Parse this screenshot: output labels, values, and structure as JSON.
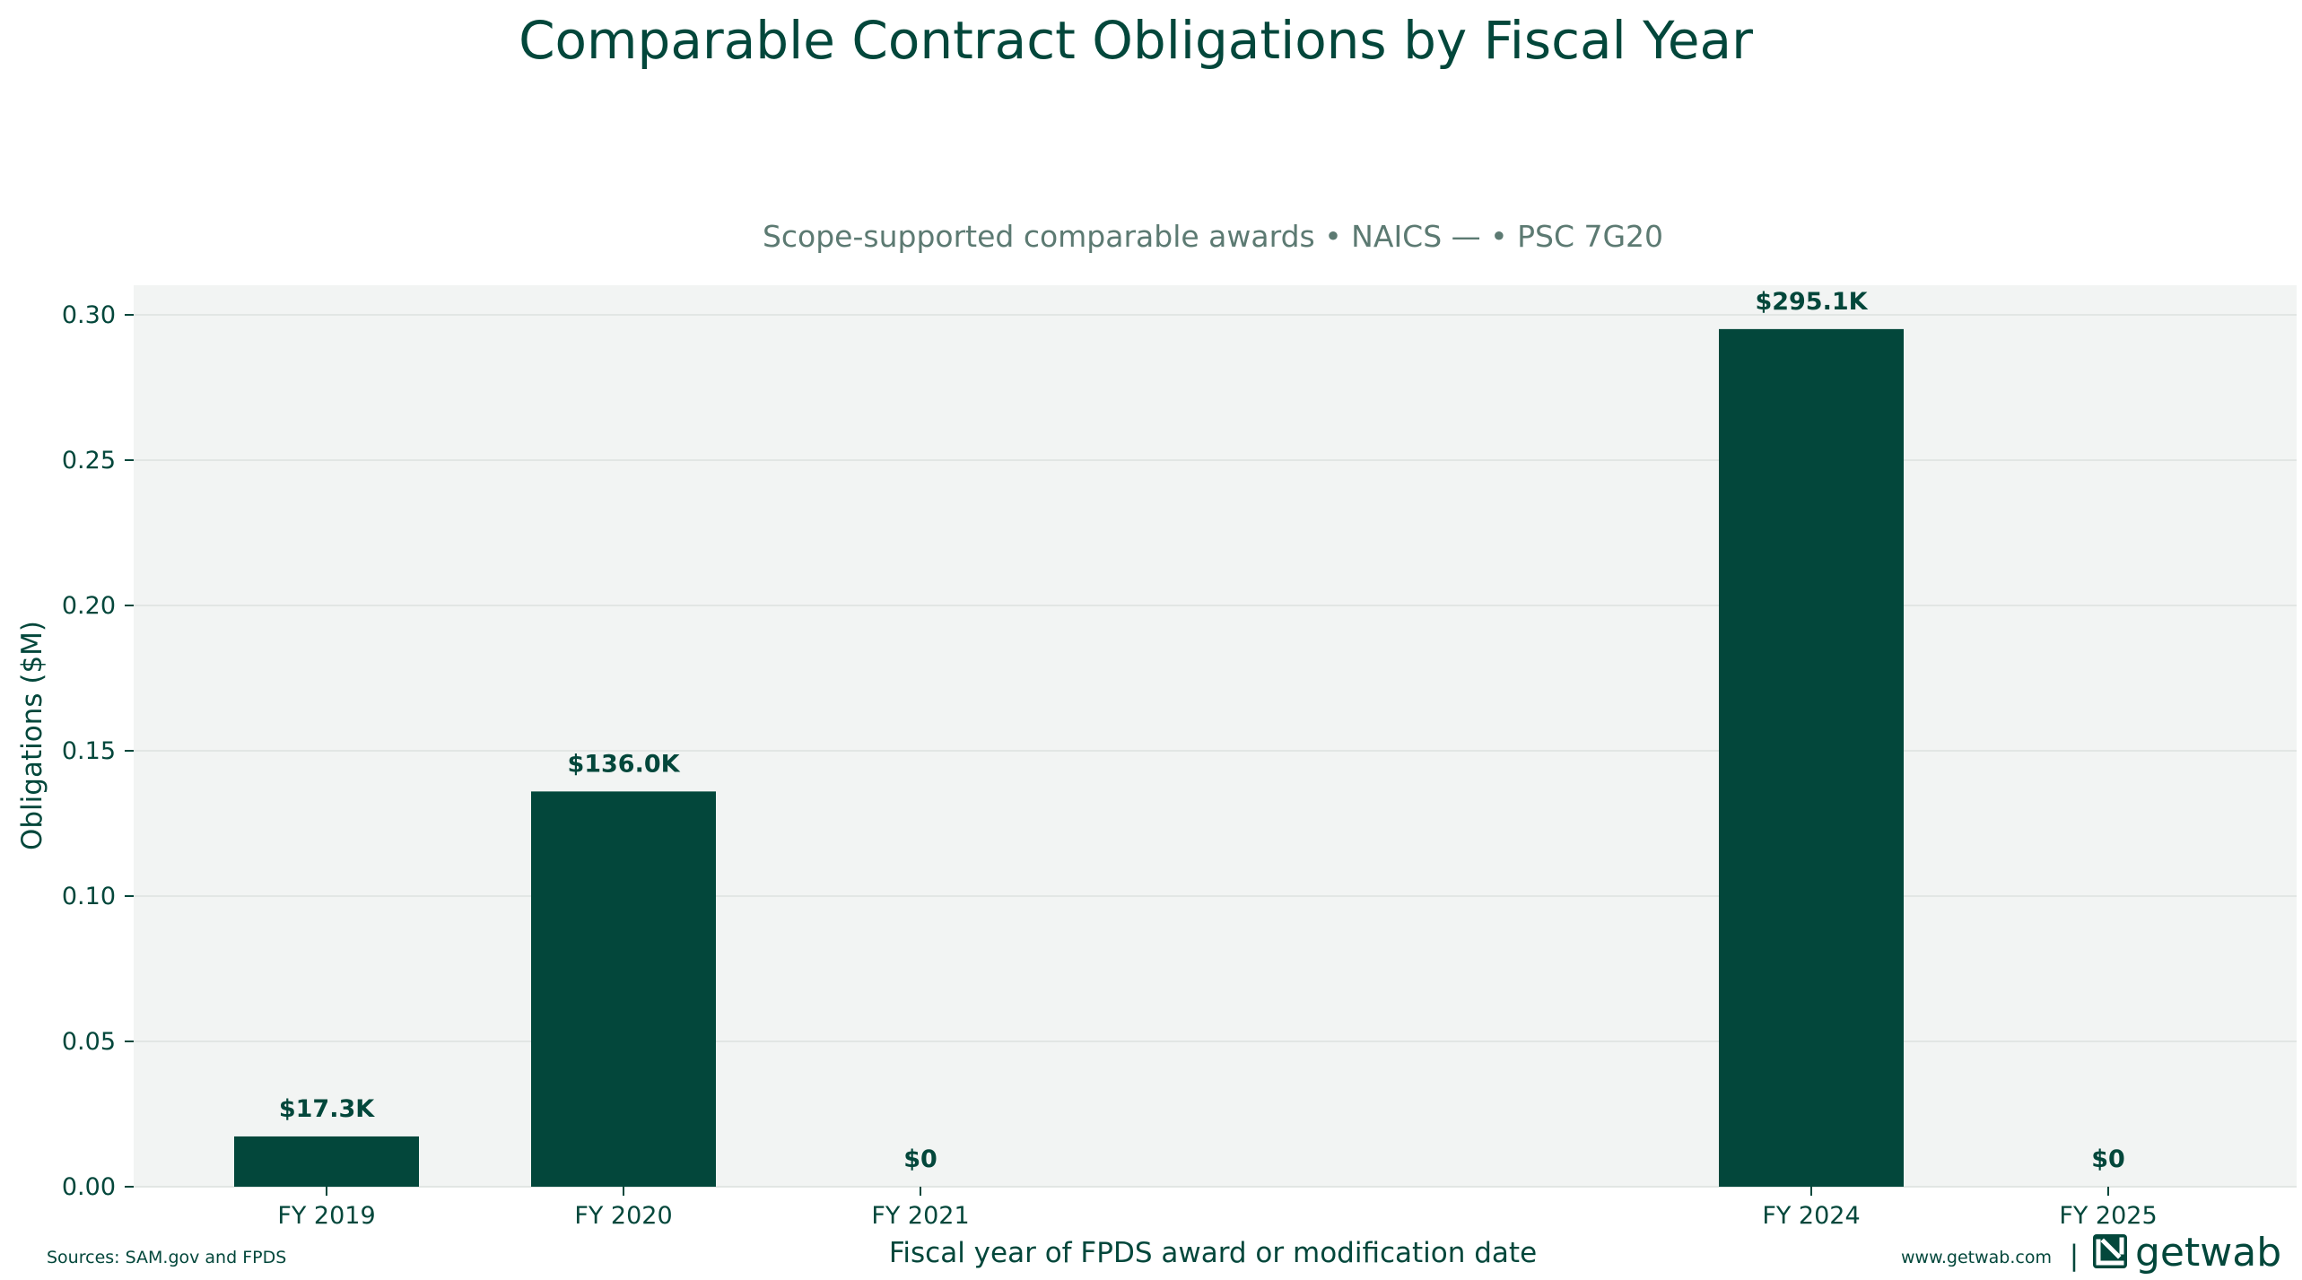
{
  "chart_data": {
    "type": "bar",
    "title": "Comparable Contract Obligations by Fiscal Year",
    "subtitle": "Scope-supported comparable awards • NAICS — • PSC 7G20",
    "xlabel": "Fiscal year of FPDS award or modification date",
    "ylabel": "Obligations ($M)",
    "categories": [
      "FY 2019",
      "FY 2020",
      "FY 2021",
      "FY 2024",
      "FY 2025"
    ],
    "x": [
      2019,
      2020,
      2021,
      2024,
      2025
    ],
    "values": [
      0.0173,
      0.136,
      0,
      0.2951,
      0
    ],
    "data_labels": [
      "$17.3K",
      "$136.0K",
      "$0",
      "$295.1K",
      "$0"
    ],
    "ylim": [
      0,
      0.31
    ],
    "yticks": [
      "0.00",
      "0.05",
      "0.10",
      "0.15",
      "0.20",
      "0.25",
      "0.30"
    ],
    "grid": "horizontal",
    "bar_color": "#03473b",
    "plot_background": "#f2f4f3"
  },
  "footer": {
    "sources": "Sources: SAM.gov and FPDS",
    "website": "www.getwab.com",
    "separator": "|",
    "brand": "getwab"
  },
  "colors": {
    "primary": "#03473b",
    "subtitle": "#5c7a72",
    "grid": "#e2e6e4"
  }
}
